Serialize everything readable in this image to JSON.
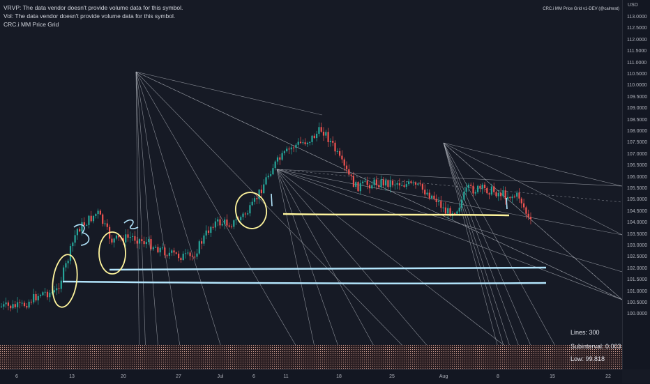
{
  "legend": {
    "vrvp": "VRVP: The data vendor doesn't provide volume data for this symbol.",
    "vol": "Vol: The data vendor doesn't provide volume data for this symbol.",
    "grid": "CRC.i MM Price Grid"
  },
  "indicator_title": "CRC.i MM Price Grid v1-DEV (@calmrat)",
  "stats": {
    "lines": "Lines: 300",
    "subinterval": "Subinterval: 0.003",
    "low": "Low: 99.818"
  },
  "price_axis": {
    "currency": "USD",
    "labels": [
      "113.0000",
      "112.5000",
      "112.0000",
      "111.5000",
      "111.0000",
      "110.5000",
      "110.0000",
      "109.5000",
      "109.0000",
      "108.5000",
      "108.0000",
      "107.5000",
      "107.0000",
      "106.5000",
      "106.0000",
      "105.5000",
      "105.0000",
      "104.5000",
      "104.0000",
      "103.5000",
      "103.0000",
      "102.5000",
      "102.0000",
      "101.5000",
      "101.0000",
      "100.5000",
      "100.0000"
    ]
  },
  "time_axis": {
    "labels": [
      "6",
      "13",
      "20",
      "27",
      "Jul",
      "6",
      "11",
      "18",
      "25",
      "Aug",
      "8",
      "15",
      "22"
    ]
  },
  "annotations": {
    "marks": [
      "3",
      "2",
      "1",
      "1"
    ]
  },
  "colors": {
    "background": "#161a25",
    "candle_up": "#26a69a",
    "candle_down": "#ef5350",
    "fan_line": "#b2b5be",
    "highlight_yellow": "#fff59d",
    "highlight_blue": "#b3e5fc",
    "grid_band": "#e8b4a0"
  }
}
